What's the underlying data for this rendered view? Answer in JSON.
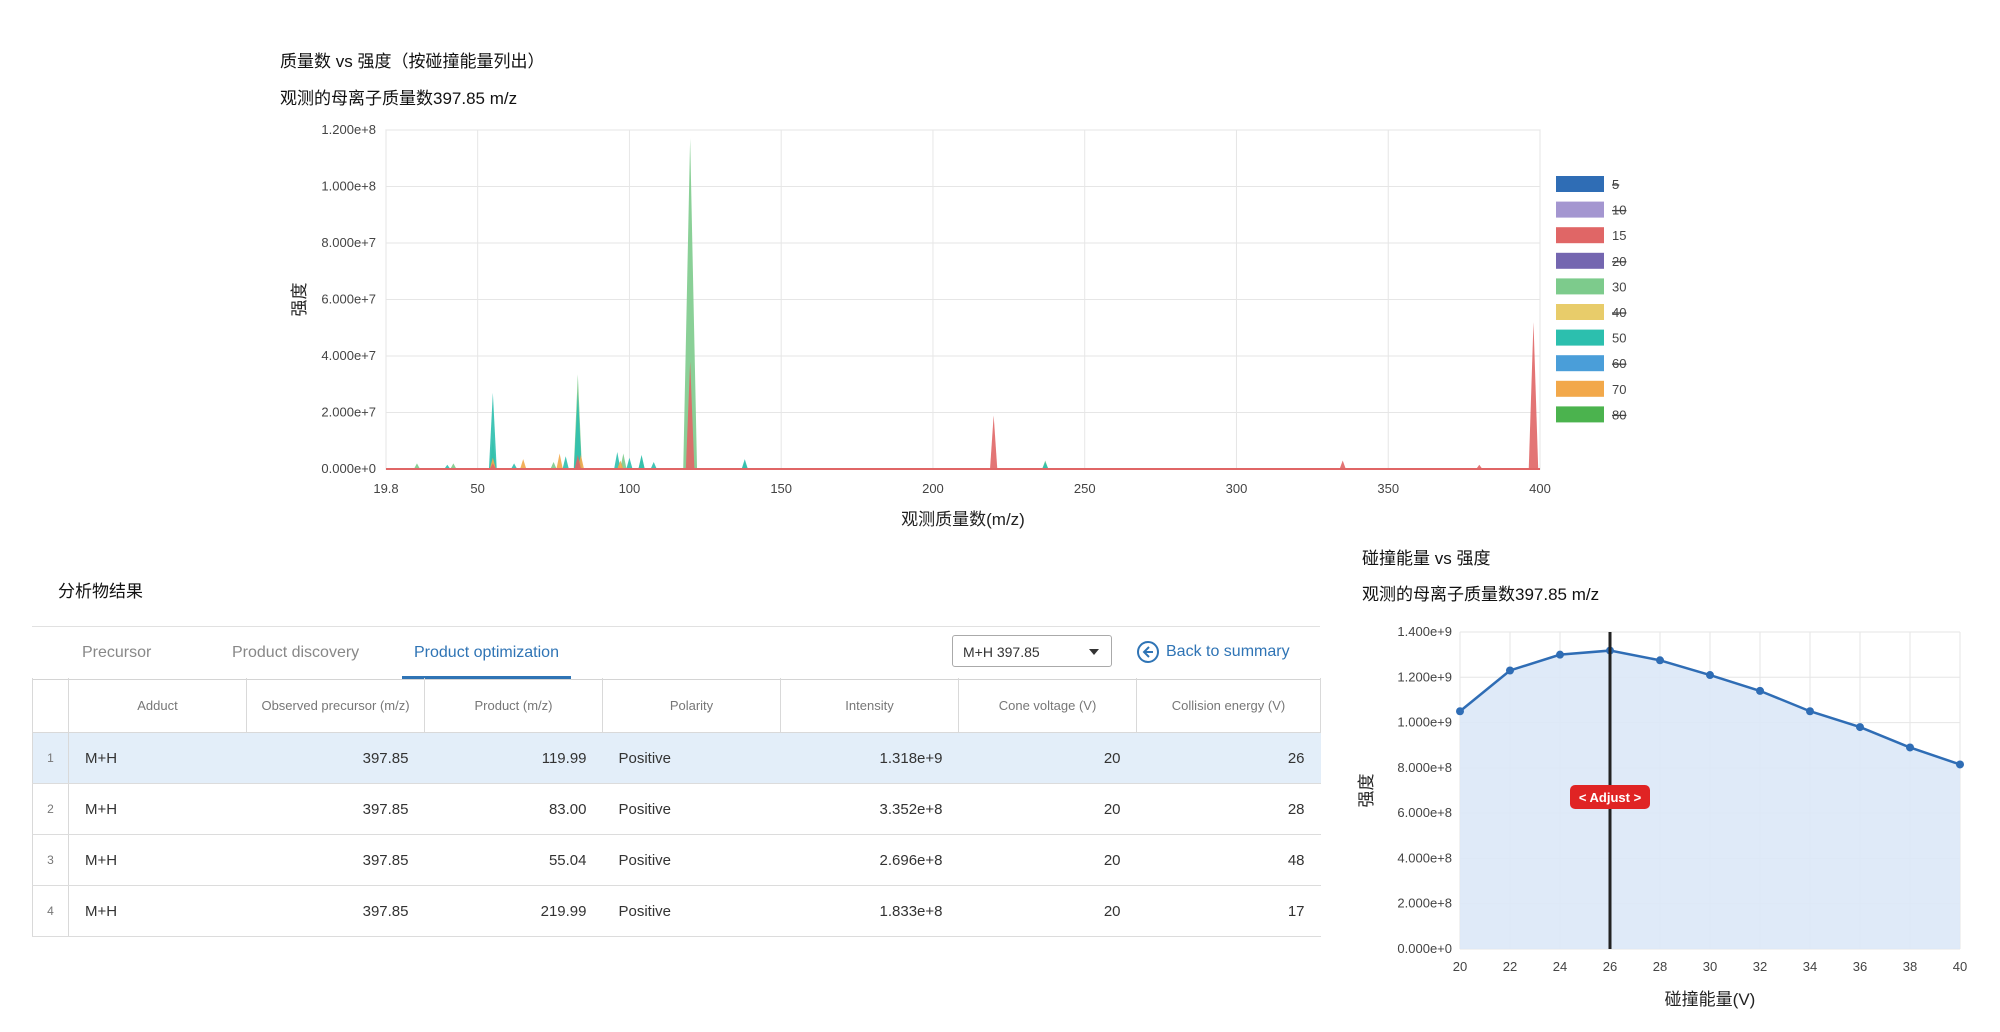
{
  "spectrum": {
    "title": "质量数 vs 强度（按碰撞能量列出）",
    "subtitle": "观测的母离子质量数397.85 m/z"
  },
  "analyte": {
    "heading": "分析物结果"
  },
  "tabs": [
    {
      "label": "Precursor",
      "active": false
    },
    {
      "label": "Product discovery",
      "active": false
    },
    {
      "label": "Product optimization",
      "active": true
    }
  ],
  "adduct_select": {
    "value": "M+H 397.85"
  },
  "back_button": {
    "label": "Back to summary"
  },
  "table": {
    "columns": [
      "Adduct",
      "Observed precursor (m/z)",
      "Product (m/z)",
      "Polarity",
      "Intensity",
      "Cone voltage (V)",
      "Collision energy (V)"
    ],
    "rows": [
      {
        "index": "1",
        "adduct": "M+H",
        "observed": "397.85",
        "product": "119.99",
        "polarity": "Positive",
        "intensity": "1.318e+9",
        "cone": "20",
        "collision": "26",
        "selected": true
      },
      {
        "index": "2",
        "adduct": "M+H",
        "observed": "397.85",
        "product": "83.00",
        "polarity": "Positive",
        "intensity": "3.352e+8",
        "cone": "20",
        "collision": "28",
        "selected": false
      },
      {
        "index": "3",
        "adduct": "M+H",
        "observed": "397.85",
        "product": "55.04",
        "polarity": "Positive",
        "intensity": "2.696e+8",
        "cone": "20",
        "collision": "48",
        "selected": false
      },
      {
        "index": "4",
        "adduct": "M+H",
        "observed": "397.85",
        "product": "219.99",
        "polarity": "Positive",
        "intensity": "1.833e+8",
        "cone": "20",
        "collision": "17",
        "selected": false
      }
    ]
  },
  "energy_chart": {
    "title": "碰撞能量 vs 强度",
    "subtitle": "观测的母离子质量数397.85 m/z",
    "adjust_label": "< Adjust >"
  },
  "chart_data": [
    {
      "type": "area",
      "xlabel": "观测质量数(m/z)",
      "ylabel": "强度",
      "xlim": [
        19.8,
        400
      ],
      "ylim": [
        0,
        120000000
      ],
      "x_ticks": [
        "19.8",
        "50",
        "100",
        "150",
        "200",
        "250",
        "300",
        "350",
        "400"
      ],
      "y_ticks": [
        "0.000e+0",
        "2.000e+7",
        "4.000e+7",
        "6.000e+7",
        "8.000e+7",
        "1.000e+8",
        "1.200e+8"
      ],
      "grid": true,
      "legend_position": "right",
      "legend": [
        {
          "name": "5",
          "color": "#2f6db5",
          "hidden": true
        },
        {
          "name": "10",
          "color": "#a496d0",
          "hidden": true
        },
        {
          "name": "15",
          "color": "#e06666",
          "hidden": false
        },
        {
          "name": "20",
          "color": "#7466b0",
          "hidden": true
        },
        {
          "name": "30",
          "color": "#7dcb8c",
          "hidden": false
        },
        {
          "name": "40",
          "color": "#e8cc6a",
          "hidden": true
        },
        {
          "name": "50",
          "color": "#2cbfae",
          "hidden": false
        },
        {
          "name": "60",
          "color": "#4a9ed9",
          "hidden": true
        },
        {
          "name": "70",
          "color": "#f2a84a",
          "hidden": false
        },
        {
          "name": "80",
          "color": "#4bb34e",
          "hidden": true
        }
      ],
      "series": [
        {
          "name": "30",
          "color": "#7dcb8c",
          "peaks": [
            [
              30,
              2000000
            ],
            [
              42,
              2000000
            ],
            [
              55,
              11000000
            ],
            [
              75,
              2500000
            ],
            [
              83,
              33500000
            ],
            [
              98,
              5500000
            ],
            [
              104,
              4500000
            ],
            [
              120,
              117000000
            ],
            [
              138,
              2500000
            ],
            [
              237,
              3000000
            ]
          ]
        },
        {
          "name": "50",
          "color": "#2cbfae",
          "peaks": [
            [
              40,
              1500000
            ],
            [
              55,
              27000000
            ],
            [
              62,
              2000000
            ],
            [
              79,
              4500000
            ],
            [
              83,
              27000000
            ],
            [
              96,
              6000000
            ],
            [
              100,
              4000000
            ],
            [
              104,
              5000000
            ],
            [
              108,
              2500000
            ],
            [
              138,
              3500000
            ],
            [
              237,
              2500000
            ]
          ]
        },
        {
          "name": "70",
          "color": "#f2a84a",
          "peaks": [
            [
              55,
              4000000
            ],
            [
              65,
              3500000
            ],
            [
              77,
              5500000
            ],
            [
              84,
              5000000
            ],
            [
              97,
              3000000
            ]
          ]
        },
        {
          "name": "15",
          "color": "#e06666",
          "peaks": [
            [
              55,
              2000000
            ],
            [
              83,
              5000000
            ],
            [
              120,
              38000000
            ],
            [
              220,
              19000000
            ],
            [
              335,
              3000000
            ],
            [
              380,
              1500000
            ],
            [
              397.85,
              52000000
            ]
          ]
        }
      ]
    },
    {
      "type": "line",
      "xlabel": "碰撞能量(V)",
      "ylabel": "强度",
      "xlim": [
        20,
        40
      ],
      "ylim": [
        0,
        1400000000
      ],
      "x_ticks": [
        "20",
        "22",
        "24",
        "26",
        "28",
        "30",
        "32",
        "34",
        "36",
        "38",
        "40"
      ],
      "y_ticks": [
        "0.000e+0",
        "2.000e+8",
        "4.000e+8",
        "6.000e+8",
        "8.000e+8",
        "1.000e+9",
        "1.200e+9",
        "1.400e+9"
      ],
      "grid": true,
      "x": [
        20,
        22,
        24,
        26,
        28,
        30,
        32,
        34,
        36,
        38,
        40
      ],
      "values": [
        1050000000,
        1230000000,
        1300000000,
        1318000000,
        1275000000,
        1210000000,
        1140000000,
        1050000000,
        980000000,
        890000000,
        815000000
      ],
      "marker_x": 26,
      "color": "#2f6db5",
      "fill": "#dce8f7"
    }
  ]
}
